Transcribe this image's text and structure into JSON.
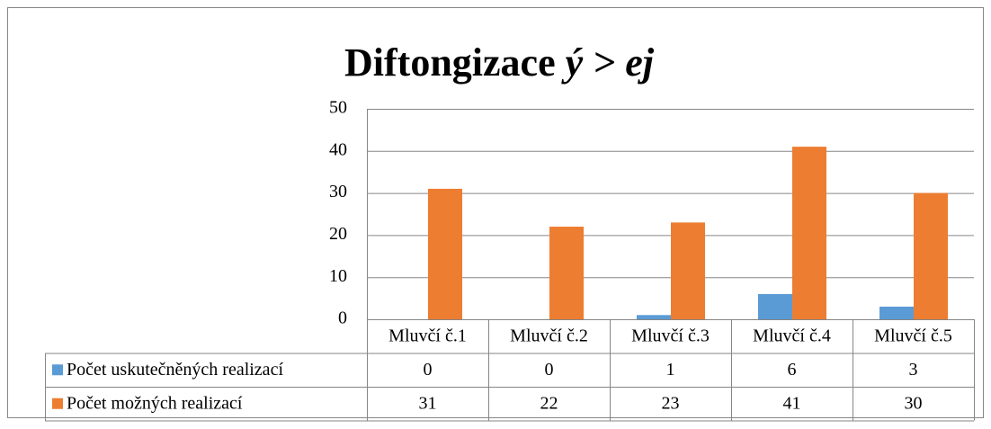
{
  "chart_data": {
    "type": "bar",
    "title": [
      "Diftongizace",
      "ý > ej"
    ],
    "categories": [
      "Mluvčí č.1",
      "Mluvčí č.2",
      "Mluvčí č.3",
      "Mluvčí č.4",
      "Mluvčí č.5"
    ],
    "series": [
      {
        "name": "Počet uskutečněných realizací",
        "color": "#5b9bd5",
        "values": [
          0,
          0,
          1,
          6,
          3
        ]
      },
      {
        "name": "Počet možných realizací",
        "color": "#ed7d31",
        "values": [
          31,
          22,
          23,
          41,
          30
        ]
      }
    ],
    "ylim": [
      0,
      50
    ],
    "yticks": [
      0,
      10,
      20,
      30,
      40,
      50
    ],
    "grid": true,
    "data_table": true
  }
}
